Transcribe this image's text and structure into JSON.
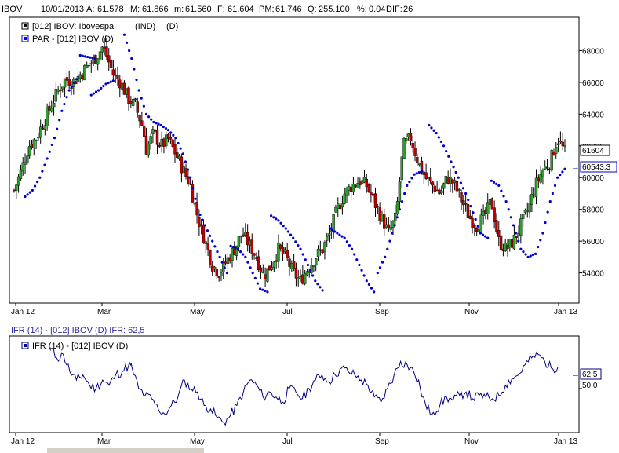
{
  "header": {
    "symbol": "IBOV",
    "date": "10/01/2013",
    "a_label": "A:",
    "a_value": "61.578",
    "m_label": "M:",
    "m_value": "61.866",
    "mi_label": "m:",
    "mi_value": "61.560",
    "f_label": "F:",
    "f_value": "61.604",
    "pm_label": "PM:",
    "pm_value": "61.746",
    "q_label": "Q:",
    "q_value": "255.100",
    "pct_label": "%:",
    "pct_value": "0.04",
    "dif_label": "DIF:",
    "dif_value": "26"
  },
  "legend": {
    "series1": "[012] IBOV: Ibovespa",
    "series1_ind": "(IND)",
    "series1_d": "(D)",
    "series2": "PAR   - [012] IBOV (D)"
  },
  "indicator": {
    "title": "IFR (14)  - [012] IBOV (D)  IFR: 62,5",
    "legend": "IFR (14)  - [012] IBOV (D)",
    "tag_value": "62.5",
    "ref_value": "50.0"
  },
  "tags": {
    "price_last": "61604",
    "par_last": "60543.3"
  },
  "colors": {
    "up_candle": "#2ca02c",
    "down_candle": "#c00000",
    "wick": "#000000",
    "sar_dot": "#0000cc",
    "ifr_line": "#000080",
    "axis": "#000000"
  },
  "chart_data": [
    {
      "type": "candlestick",
      "title": "IBOV 10/01/2013",
      "x_ticks": [
        "Jan 12",
        "Mar",
        "May",
        "Jul",
        "Sep",
        "Nov",
        "Jan 13"
      ],
      "y_ticks": [
        54000,
        56000,
        58000,
        60000,
        62000,
        64000,
        66000,
        68000
      ],
      "ylim": [
        52200,
        70000
      ],
      "series": [
        {
          "name": "[012] IBOV: Ibovespa",
          "close_path": [
            [
              0,
              59200
            ],
            [
              4,
              60500
            ],
            [
              8,
              62000
            ],
            [
              12,
              62500
            ],
            [
              16,
              63500
            ],
            [
              20,
              64500
            ],
            [
              24,
              65500
            ],
            [
              28,
              66200
            ],
            [
              32,
              66000
            ],
            [
              36,
              66500
            ],
            [
              40,
              67000
            ],
            [
              44,
              67500
            ],
            [
              48,
              68200
            ],
            [
              50,
              67800
            ],
            [
              54,
              66500
            ],
            [
              58,
              66000
            ],
            [
              62,
              65000
            ],
            [
              66,
              64500
            ],
            [
              70,
              63200
            ],
            [
              72,
              61800
            ],
            [
              76,
              62800
            ],
            [
              80,
              62000
            ],
            [
              84,
              62400
            ],
            [
              88,
              61500
            ],
            [
              92,
              60500
            ],
            [
              96,
              59500
            ],
            [
              100,
              57500
            ],
            [
              104,
              56000
            ],
            [
              108,
              54500
            ],
            [
              112,
              54000
            ],
            [
              116,
              54800
            ],
            [
              120,
              55500
            ],
            [
              124,
              56500
            ],
            [
              128,
              55800
            ],
            [
              132,
              55000
            ],
            [
              136,
              53800
            ],
            [
              140,
              54500
            ],
            [
              144,
              55500
            ],
            [
              148,
              55000
            ],
            [
              152,
              54000
            ],
            [
              156,
              53500
            ],
            [
              160,
              54300
            ],
            [
              164,
              55000
            ],
            [
              168,
              55500
            ],
            [
              172,
              56500
            ],
            [
              176,
              58000
            ],
            [
              180,
              59000
            ],
            [
              184,
              59500
            ],
            [
              188,
              59800
            ],
            [
              192,
              59500
            ],
            [
              196,
              58500
            ],
            [
              200,
              57500
            ],
            [
              204,
              56500
            ],
            [
              208,
              57500
            ],
            [
              212,
              62000
            ],
            [
              216,
              62500
            ],
            [
              220,
              61000
            ],
            [
              224,
              60000
            ],
            [
              228,
              59500
            ],
            [
              232,
              59000
            ],
            [
              236,
              60000
            ],
            [
              240,
              59500
            ],
            [
              244,
              58500
            ],
            [
              248,
              57500
            ],
            [
              252,
              57000
            ],
            [
              256,
              57500
            ],
            [
              260,
              58500
            ],
            [
              264,
              56000
            ],
            [
              268,
              55500
            ],
            [
              272,
              56000
            ],
            [
              276,
              57000
            ],
            [
              280,
              58000
            ],
            [
              284,
              59500
            ],
            [
              288,
              60500
            ],
            [
              292,
              61000
            ],
            [
              296,
              62500
            ],
            [
              300,
              61600
            ]
          ]
        },
        {
          "name": "PAR   - [012] IBOV (D)",
          "sar_segments": [
            [
              [
                6,
                58800
              ],
              [
                10,
                59200
              ],
              [
                14,
                60000
              ],
              [
                18,
                61200
              ],
              [
                22,
                62500
              ],
              [
                26,
                64200
              ],
              [
                30,
                65500
              ],
              [
                34,
                66200
              ]
            ],
            [
              [
                36,
                67700
              ],
              [
                40,
                67600
              ],
              [
                44,
                67500
              ]
            ],
            [
              [
                42,
                65200
              ],
              [
                46,
                65500
              ],
              [
                50,
                65900
              ],
              [
                54,
                66100
              ]
            ],
            [
              [
                60,
                69000
              ],
              [
                64,
                67500
              ],
              [
                68,
                65500
              ],
              [
                72,
                64000
              ],
              [
                76,
                63500
              ],
              [
                80,
                63300
              ],
              [
                84,
                63000
              ],
              [
                88,
                62500
              ],
              [
                92,
                61500
              ],
              [
                96,
                60000
              ],
              [
                100,
                58000
              ],
              [
                104,
                57000
              ],
              [
                108,
                56000
              ],
              [
                112,
                55000
              ],
              [
                116,
                54000
              ]
            ],
            [
              [
                118,
                55700
              ],
              [
                122,
                55500
              ],
              [
                126,
                55000
              ],
              [
                130,
                54000
              ],
              [
                134,
                53000
              ],
              [
                138,
                52800
              ]
            ],
            [
              [
                140,
                57600
              ],
              [
                144,
                57300
              ],
              [
                148,
                56800
              ],
              [
                152,
                56200
              ],
              [
                156,
                55500
              ],
              [
                160,
                54500
              ],
              [
                164,
                53500
              ],
              [
                168,
                52900
              ]
            ],
            [
              [
                172,
                56800
              ],
              [
                176,
                56500
              ],
              [
                180,
                56200
              ],
              [
                184,
                55500
              ],
              [
                188,
                54500
              ],
              [
                192,
                53500
              ],
              [
                196,
                52800
              ]
            ],
            [
              [
                198,
                54000
              ],
              [
                202,
                55000
              ],
              [
                206,
                56500
              ],
              [
                210,
                58000
              ],
              [
                214,
                59500
              ],
              [
                218,
                60200
              ],
              [
                222,
                60400
              ]
            ],
            [
              [
                226,
                63300
              ],
              [
                230,
                62800
              ],
              [
                234,
                62000
              ],
              [
                238,
                61000
              ],
              [
                242,
                60000
              ],
              [
                246,
                59000
              ],
              [
                250,
                57800
              ],
              [
                254,
                56500
              ],
              [
                258,
                56200
              ]
            ],
            [
              [
                260,
                59800
              ],
              [
                264,
                59500
              ],
              [
                268,
                58500
              ],
              [
                272,
                57000
              ],
              [
                276,
                55500
              ],
              [
                280,
                55000
              ],
              [
                284,
                55200
              ],
              [
                288,
                56500
              ],
              [
                292,
                58500
              ],
              [
                296,
                60000
              ],
              [
                300,
                60543
              ]
            ]
          ]
        }
      ]
    },
    {
      "type": "line",
      "title": "IFR (14)  - [012] IBOV (D)  IFR: 62,5",
      "x_ticks": [
        "Jan 12",
        "Mar",
        "May",
        "Jul",
        "Sep",
        "Nov",
        "Jan 13"
      ],
      "y_ticks": [
        50.0
      ],
      "ylim": [
        25,
        80
      ],
      "series": [
        {
          "name": "IFR (14)  - [012] IBOV (D)",
          "values": [
            [
              0,
              74
            ],
            [
              4,
              68
            ],
            [
              8,
              70
            ],
            [
              12,
              60
            ],
            [
              16,
              55
            ],
            [
              20,
              58
            ],
            [
              24,
              52
            ],
            [
              28,
              50
            ],
            [
              32,
              55
            ],
            [
              36,
              52
            ],
            [
              40,
              58
            ],
            [
              44,
              60
            ],
            [
              48,
              64
            ],
            [
              50,
              62
            ],
            [
              54,
              50
            ],
            [
              58,
              46
            ],
            [
              62,
              44
            ],
            [
              66,
              38
            ],
            [
              70,
              35
            ],
            [
              74,
              40
            ],
            [
              78,
              45
            ],
            [
              82,
              55
            ],
            [
              86,
              50
            ],
            [
              90,
              48
            ],
            [
              94,
              40
            ],
            [
              98,
              38
            ],
            [
              102,
              33
            ],
            [
              106,
              30
            ],
            [
              110,
              34
            ],
            [
              114,
              40
            ],
            [
              118,
              48
            ],
            [
              122,
              55
            ],
            [
              126,
              52
            ],
            [
              130,
              45
            ],
            [
              134,
              48
            ],
            [
              138,
              45
            ],
            [
              142,
              42
            ],
            [
              146,
              50
            ],
            [
              150,
              48
            ],
            [
              154,
              44
            ],
            [
              158,
              50
            ],
            [
              162,
              55
            ],
            [
              166,
              58
            ],
            [
              170,
              54
            ],
            [
              174,
              58
            ],
            [
              178,
              62
            ],
            [
              182,
              60
            ],
            [
              186,
              58
            ],
            [
              190,
              55
            ],
            [
              194,
              52
            ],
            [
              198,
              45
            ],
            [
              202,
              42
            ],
            [
              206,
              50
            ],
            [
              210,
              58
            ],
            [
              214,
              66
            ],
            [
              218,
              64
            ],
            [
              222,
              60
            ],
            [
              226,
              50
            ],
            [
              230,
              38
            ],
            [
              234,
              36
            ],
            [
              238,
              40
            ],
            [
              242,
              45
            ],
            [
              246,
              43
            ],
            [
              250,
              46
            ],
            [
              254,
              48
            ],
            [
              258,
              44
            ],
            [
              262,
              46
            ],
            [
              266,
              45
            ],
            [
              270,
              44
            ],
            [
              274,
              46
            ],
            [
              278,
              52
            ],
            [
              282,
              56
            ],
            [
              286,
              58
            ],
            [
              290,
              64
            ],
            [
              294,
              68
            ],
            [
              298,
              70
            ],
            [
              302,
              66
            ],
            [
              306,
              62
            ],
            [
              310,
              62.5
            ]
          ],
          "ref_line": 50.0
        }
      ]
    }
  ]
}
